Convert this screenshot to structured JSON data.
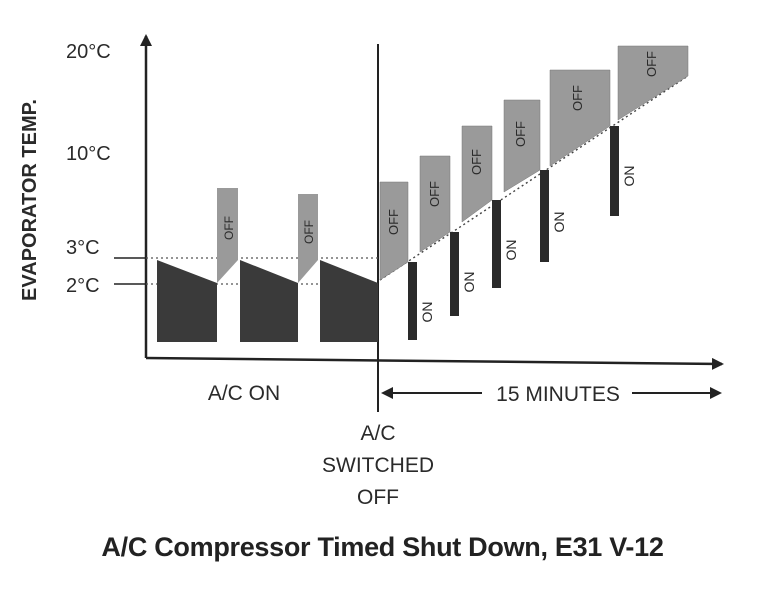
{
  "y_axis_label": "EVAPORATOR TEMP.",
  "y_ticks": [
    "20°C",
    "10°C",
    "3°C",
    "2°C"
  ],
  "cycle_labels": {
    "on": "ON",
    "off": "OFF"
  },
  "x_labels": {
    "ac_on": "A/C ON",
    "fifteen_minutes": "15 MINUTES"
  },
  "switch_point": {
    "line1": "A/C",
    "line2": "SWITCHED",
    "line3": "OFF"
  },
  "caption": "A/C Compressor Timed Shut Down, E31 V-12",
  "colors": {
    "ink": "#222222",
    "dark_fill": "#3a3a3a",
    "off_fill": "#9a9a9a"
  }
}
